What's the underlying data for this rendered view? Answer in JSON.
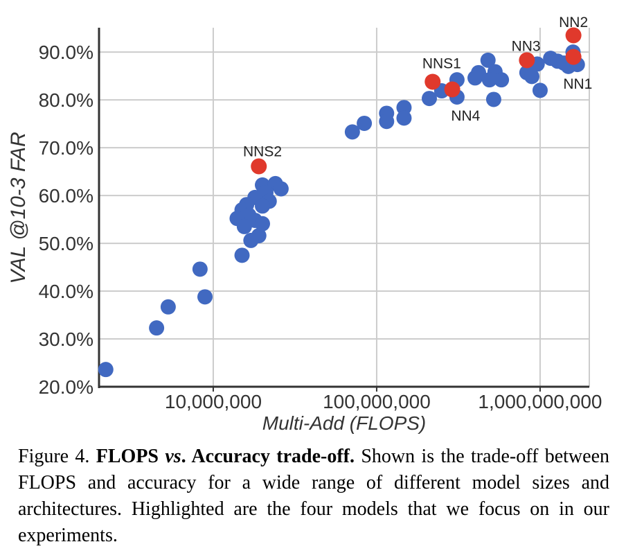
{
  "chart_data": {
    "type": "scatter",
    "xlabel": "Multi-Add (FLOPS)",
    "ylabel": "VAL @10-3 FAR",
    "x_scale": "log",
    "xlim": [
      2000000,
      2000000000
    ],
    "ylim": [
      20,
      95.1
    ],
    "grid": true,
    "legend": "none",
    "colors": {
      "point": "#4169c1",
      "highlight": "#e0392c",
      "grid": "#cccccc",
      "axis": "#333333",
      "text": "#333333"
    },
    "x_ticks": [
      {
        "value": 10000000,
        "label": "10,000,000"
      },
      {
        "value": 100000000,
        "label": "100,000,000"
      },
      {
        "value": 1000000000,
        "label": "1,000,000,000"
      }
    ],
    "y_ticks": [
      {
        "value": 20,
        "label": "20.0%"
      },
      {
        "value": 30,
        "label": "30.0%"
      },
      {
        "value": 40,
        "label": "40.0%"
      },
      {
        "value": 50,
        "label": "50.0%"
      },
      {
        "value": 60,
        "label": "60.0%"
      },
      {
        "value": 70,
        "label": "70.0%"
      },
      {
        "value": 80,
        "label": "80.0%"
      },
      {
        "value": 90,
        "label": "90.0%"
      }
    ],
    "series": [
      {
        "name": "models",
        "color": "#4169c1",
        "radius": 11,
        "point_name": "data-point-blue",
        "points": [
          [
            2200000,
            23.6
          ],
          [
            4500000,
            32.3
          ],
          [
            5300000,
            36.7
          ],
          [
            8300000,
            44.6
          ],
          [
            8900000,
            38.8
          ],
          [
            15000000,
            47.5
          ],
          [
            20000000,
            62.2
          ],
          [
            24000000,
            62.5
          ],
          [
            26000000,
            61.4
          ],
          [
            21000000,
            60.6
          ],
          [
            18000000,
            59.6
          ],
          [
            22000000,
            58.8
          ],
          [
            16000000,
            58.1
          ],
          [
            20000000,
            57.8
          ],
          [
            15000000,
            57.0
          ],
          [
            16500000,
            55.9
          ],
          [
            14000000,
            55.2
          ],
          [
            18000000,
            54.8
          ],
          [
            20000000,
            54.1
          ],
          [
            15500000,
            53.5
          ],
          [
            19000000,
            51.6
          ],
          [
            17000000,
            50.6
          ],
          [
            71000000,
            73.3
          ],
          [
            84000000,
            75.1
          ],
          [
            115000000,
            77.2
          ],
          [
            115000000,
            75.5
          ],
          [
            147000000,
            78.4
          ],
          [
            147000000,
            76.2
          ],
          [
            210000000,
            80.3
          ],
          [
            250000000,
            81.9
          ],
          [
            310000000,
            84.2
          ],
          [
            310000000,
            80.6
          ],
          [
            480000000,
            88.3
          ],
          [
            420000000,
            85.7
          ],
          [
            400000000,
            84.6
          ],
          [
            530000000,
            85.9
          ],
          [
            490000000,
            84.2
          ],
          [
            580000000,
            84.2
          ],
          [
            520000000,
            80.1
          ],
          [
            960000000,
            87.5
          ],
          [
            830000000,
            85.7
          ],
          [
            890000000,
            84.9
          ],
          [
            1000000000,
            82.0
          ],
          [
            1160000000,
            88.7
          ],
          [
            1280000000,
            88.1
          ],
          [
            1400000000,
            87.7
          ],
          [
            1490000000,
            87.0
          ],
          [
            1590000000,
            90.0
          ],
          [
            1690000000,
            87.4
          ]
        ]
      },
      {
        "name": "highlighted-models",
        "color": "#e0392c",
        "radius": 11.5,
        "point_name": "data-point-red",
        "points": [
          [
            19000000,
            66.1
          ],
          [
            220000000,
            83.8
          ],
          [
            290000000,
            82.2
          ],
          [
            830000000,
            88.3
          ],
          [
            1600000000,
            89.0
          ],
          [
            1600000000,
            93.5
          ]
        ]
      }
    ],
    "annotations": [
      {
        "text": "NNS2",
        "flops": 20000000,
        "val": 69.4
      },
      {
        "text": "NNS1",
        "flops": 250000000,
        "val": 87.8
      },
      {
        "text": "NN4",
        "flops": 350000000,
        "val": 76.8
      },
      {
        "text": "NN3",
        "flops": 820000000,
        "val": 91.4
      },
      {
        "text": "NN2",
        "flops": 1600000000,
        "val": 96.4
      },
      {
        "text": "NN1",
        "flops": 1700000000,
        "val": 83.5
      }
    ]
  },
  "caption": {
    "prefix": "Figure 4. ",
    "bold1": "FLOPS ",
    "bold_italic": "vs",
    "bold2": ". Accuracy trade-off.",
    "body": " Shown is the trade-off between FLOPS and accuracy for a wide range of different model sizes and architectures. Highlighted are the four models that we focus on in our experiments."
  }
}
